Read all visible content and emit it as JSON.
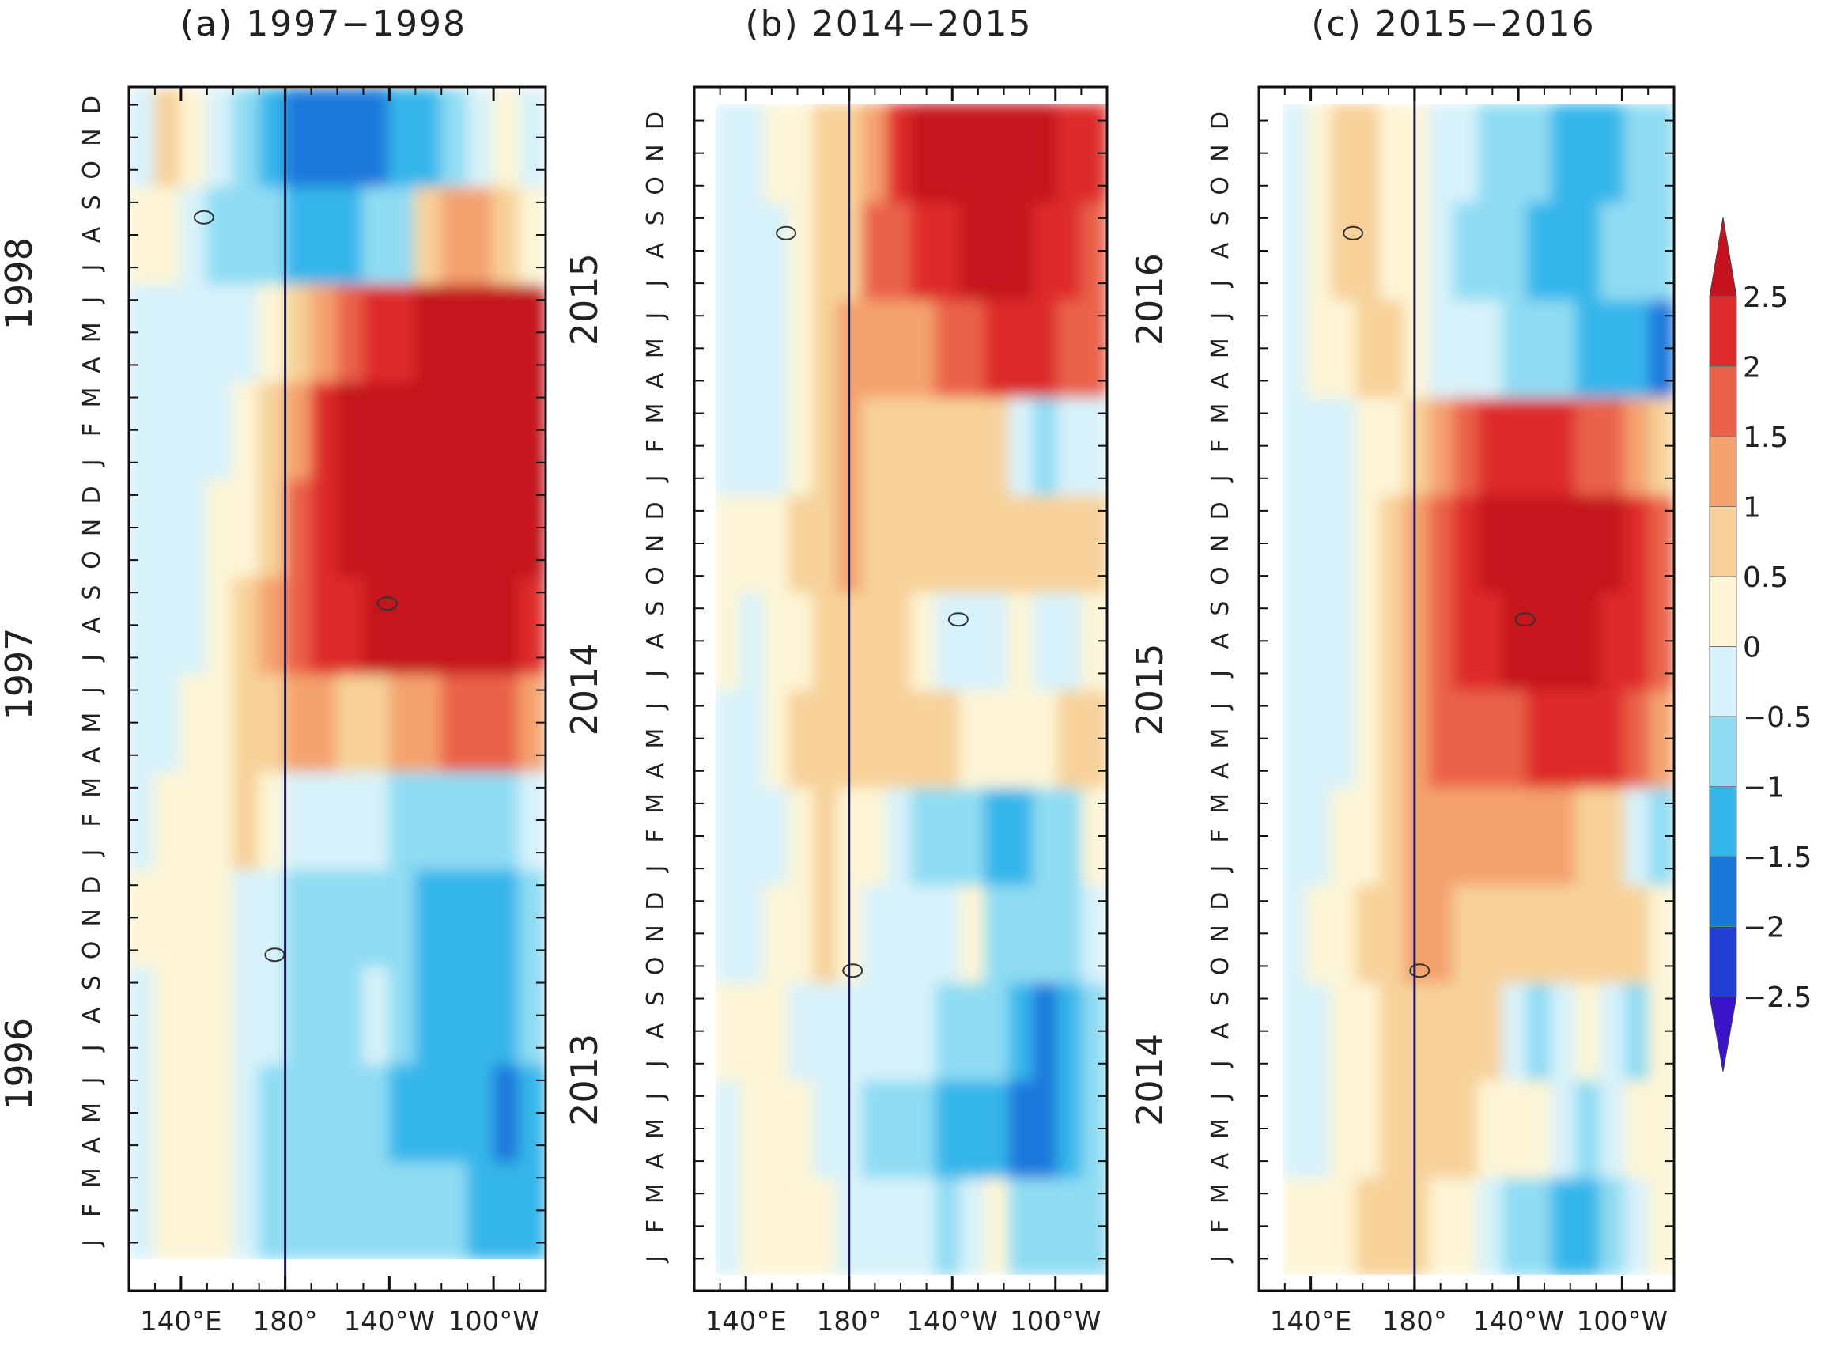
{
  "figure": {
    "colors": {
      "scale": [
        "#3a14c8",
        "#1f3fd6",
        "#1a78dc",
        "#35b6ea",
        "#8fdcf3",
        "#d7f2fa",
        "#fdf5d6",
        "#f7d199",
        "#f4a26e",
        "#ea6248",
        "#de2b2b",
        "#c4121f"
      ],
      "axis": "#111111",
      "dateline": "#1b1b4f",
      "contour": "#000000"
    },
    "colorbar": {
      "ticks": [
        "2.5",
        "2",
        "1.5",
        "1",
        "0.5",
        "0",
        "−0.5",
        "−1",
        "−1.5",
        "−2",
        "−2.5"
      ],
      "levels": [
        2.5,
        2,
        1.5,
        1,
        0.5,
        0,
        -0.5,
        -1,
        -1.5,
        -2,
        -2.5
      ]
    },
    "panels": [
      {
        "id": "a",
        "title": "(a) 1997−1998",
        "years": [
          "1996",
          "1997",
          "1998"
        ],
        "months": [
          "J",
          "F",
          "M",
          "A",
          "M",
          "J",
          "J",
          "A",
          "S",
          "O",
          "N",
          "D",
          "J",
          "F",
          "M",
          "A",
          "M",
          "J",
          "J",
          "A",
          "S",
          "O",
          "N",
          "D",
          "J",
          "F",
          "M",
          "A",
          "M",
          "J",
          "J",
          "A",
          "S",
          "O",
          "N",
          "D"
        ],
        "xticks": [
          "140°E",
          "180°",
          "140°W",
          "100°W"
        ],
        "zero_label": "0"
      },
      {
        "id": "b",
        "title": "(b) 2014−2015",
        "years": [
          "2013",
          "2014",
          "2015"
        ],
        "months": [
          "J",
          "F",
          "M",
          "A",
          "M",
          "J",
          "J",
          "A",
          "S",
          "O",
          "N",
          "D",
          "J",
          "F",
          "M",
          "A",
          "M",
          "J",
          "J",
          "A",
          "S",
          "O",
          "N",
          "D",
          "J",
          "F",
          "M",
          "A",
          "M",
          "J",
          "J",
          "A",
          "S",
          "O",
          "N",
          "D"
        ],
        "xticks": [
          "140°E",
          "180°",
          "140°W",
          "100°W"
        ],
        "zero_label": "0"
      },
      {
        "id": "c",
        "title": "(c) 2015−2016",
        "years": [
          "2014",
          "2015",
          "2016"
        ],
        "months": [
          "J",
          "F",
          "M",
          "A",
          "M",
          "J",
          "J",
          "A",
          "S",
          "O",
          "N",
          "D",
          "J",
          "F",
          "M",
          "A",
          "M",
          "J",
          "J",
          "A",
          "S",
          "O",
          "N",
          "D",
          "J",
          "F",
          "M",
          "A",
          "M",
          "J",
          "J",
          "A",
          "S",
          "O",
          "N",
          "D"
        ],
        "xticks": [
          "140°E",
          "180°",
          "140°W",
          "100°W"
        ],
        "zero_label": "0"
      }
    ]
  },
  "chart_data": [
    {
      "type": "heatmap",
      "title": "(a) 1997−1998",
      "x_ticks": [
        "140°E",
        "180°",
        "140°W",
        "100°W"
      ],
      "x_range": [
        120,
        280
      ],
      "x_values": [
        125,
        135,
        145,
        155,
        165,
        175,
        185,
        195,
        205,
        215,
        225,
        235,
        245,
        255,
        265,
        275
      ],
      "y_year_labels": [
        "1996",
        "1997",
        "1998"
      ],
      "y_range": [
        "1996-01",
        "1998-12"
      ],
      "y_months": [
        "1996-01",
        "1996-04",
        "1996-07",
        "1996-10",
        "1997-01",
        "1997-04",
        "1997-07",
        "1997-10",
        "1998-01",
        "1998-04",
        "1998-07",
        "1998-10"
      ],
      "z": [
        [
          -0.3,
          0.3,
          0.4,
          0.2,
          -0.2,
          -0.6,
          -1.0,
          -1.0,
          -0.9,
          -0.8,
          -1.0,
          -0.8,
          -0.9,
          -1.1,
          -1.4,
          -1.2
        ],
        [
          -0.3,
          0.2,
          0.3,
          0.1,
          -0.2,
          -0.6,
          -0.8,
          -0.9,
          -1.0,
          -0.9,
          -1.1,
          -1.3,
          -1.4,
          -1.5,
          -1.7,
          -1.2
        ],
        [
          -0.2,
          0.2,
          0.2,
          0.0,
          -0.3,
          -0.5,
          -0.6,
          -0.7,
          -0.6,
          -0.5,
          -0.9,
          -1.2,
          -1.5,
          -1.3,
          -1.2,
          -0.9
        ],
        [
          0.1,
          0.2,
          0.2,
          0.1,
          -0.2,
          -0.4,
          -0.6,
          -0.8,
          -0.8,
          -0.8,
          -1.0,
          -1.1,
          -1.3,
          -1.5,
          -1.2,
          -0.9
        ],
        [
          -0.2,
          0.1,
          0.3,
          0.4,
          0.5,
          0.3,
          -0.2,
          -0.4,
          -0.5,
          -0.5,
          -0.6,
          -0.8,
          -0.9,
          -1.0,
          -0.8,
          -0.4
        ],
        [
          -0.4,
          -0.1,
          0.1,
          0.4,
          0.6,
          0.9,
          1.1,
          1.0,
          0.9,
          0.9,
          1.0,
          1.3,
          1.6,
          1.9,
          1.6,
          1.2
        ],
        [
          -0.3,
          -0.2,
          -0.1,
          0.2,
          0.6,
          1.0,
          1.5,
          2.0,
          2.4,
          2.6,
          2.7,
          2.8,
          2.8,
          2.9,
          2.7,
          2.2
        ],
        [
          -0.4,
          -0.3,
          -0.2,
          0.0,
          0.3,
          0.9,
          1.6,
          2.2,
          2.6,
          2.8,
          2.9,
          3.0,
          3.0,
          3.0,
          2.9,
          2.8
        ],
        [
          -0.4,
          -0.3,
          -0.3,
          -0.1,
          0.2,
          0.6,
          1.4,
          2.0,
          2.6,
          2.9,
          3.0,
          3.0,
          3.0,
          3.0,
          3.0,
          2.9
        ],
        [
          -0.5,
          -0.4,
          -0.3,
          -0.2,
          -0.1,
          0.2,
          0.6,
          1.1,
          1.6,
          2.0,
          2.3,
          2.6,
          2.8,
          2.9,
          2.9,
          2.7
        ],
        [
          0.0,
          0.3,
          -0.2,
          -0.6,
          -0.9,
          -1.0,
          -1.2,
          -1.3,
          -1.2,
          -1.0,
          -0.6,
          0.6,
          1.4,
          1.2,
          0.8,
          0.1
        ],
        [
          -0.2,
          0.7,
          0.4,
          -0.3,
          -0.7,
          -1.1,
          -1.6,
          -1.9,
          -2.0,
          -1.9,
          -1.4,
          -1.1,
          -0.6,
          -0.1,
          0.2,
          -0.4
        ]
      ]
    },
    {
      "type": "heatmap",
      "title": "(b) 2014−2015",
      "x_ticks": [
        "140°E",
        "180°",
        "140°W",
        "100°W"
      ],
      "x_range": [
        120,
        280
      ],
      "x_values": [
        125,
        135,
        145,
        155,
        165,
        175,
        185,
        195,
        205,
        215,
        225,
        235,
        245,
        255,
        265,
        275
      ],
      "y_year_labels": [
        "2013",
        "2014",
        "2015"
      ],
      "y_range": [
        "2013-01",
        "2015-12"
      ],
      "y_months": [
        "2013-01",
        "2013-04",
        "2013-07",
        "2013-10",
        "2014-01",
        "2014-04",
        "2014-07",
        "2014-10",
        "2015-01",
        "2015-04",
        "2015-07",
        "2015-10"
      ],
      "z": [
        [
          -0.2,
          0.2,
          0.3,
          0.2,
          0.0,
          -0.2,
          -0.4,
          -0.5,
          -0.5,
          -0.6,
          -0.4,
          0.2,
          -0.6,
          -0.9,
          -0.9,
          -0.6
        ],
        [
          -0.2,
          0.1,
          0.2,
          0.1,
          -0.1,
          -0.3,
          -0.6,
          -0.8,
          -0.8,
          -1.1,
          -1.3,
          -1.4,
          -1.8,
          -2.0,
          -1.4,
          -0.8
        ],
        [
          0.2,
          0.2,
          0.0,
          -0.1,
          -0.2,
          -0.3,
          -0.4,
          -0.4,
          -0.5,
          -0.6,
          -0.7,
          -1.0,
          -1.4,
          -1.6,
          -1.2,
          -0.6
        ],
        [
          -0.3,
          -0.3,
          0.2,
          0.4,
          0.5,
          0.2,
          -0.2,
          -0.3,
          -0.5,
          -0.4,
          0.2,
          -0.6,
          -0.9,
          -1.0,
          -0.8,
          -0.4
        ],
        [
          -0.3,
          -0.3,
          -0.2,
          0.3,
          0.6,
          0.4,
          0.2,
          -0.4,
          -0.7,
          -0.9,
          -1.0,
          -1.2,
          -1.3,
          -1.0,
          -0.6,
          0.2
        ],
        [
          -0.4,
          -0.3,
          0.2,
          0.6,
          0.8,
          0.9,
          0.8,
          0.7,
          0.5,
          0.5,
          0.4,
          0.3,
          0.4,
          0.4,
          0.6,
          0.5
        ],
        [
          0.2,
          -0.1,
          0.2,
          0.3,
          0.6,
          0.8,
          0.9,
          0.6,
          0.3,
          -0.3,
          -0.5,
          -0.3,
          0.3,
          -0.4,
          -0.2,
          0.4
        ],
        [
          0.2,
          0.3,
          0.3,
          0.5,
          0.8,
          1.0,
          0.9,
          0.8,
          0.7,
          0.6,
          0.5,
          0.6,
          0.8,
          0.7,
          0.6,
          0.6
        ],
        [
          -0.3,
          -0.2,
          -0.1,
          0.4,
          0.9,
          1.0,
          0.9,
          0.8,
          0.6,
          0.8,
          0.7,
          0.6,
          -0.3,
          -0.6,
          -0.4,
          -0.3
        ],
        [
          -0.3,
          -0.5,
          -0.2,
          0.3,
          0.7,
          1.1,
          1.2,
          1.4,
          1.4,
          1.6,
          1.9,
          2.1,
          2.2,
          2.0,
          1.7,
          1.5
        ],
        [
          -0.3,
          -0.4,
          -0.2,
          0.2,
          0.5,
          0.9,
          1.5,
          1.9,
          2.2,
          2.4,
          2.6,
          2.7,
          2.6,
          2.4,
          2.1,
          1.8
        ],
        [
          -0.2,
          -0.1,
          0.1,
          0.3,
          0.5,
          0.8,
          1.3,
          2.0,
          2.5,
          2.8,
          2.9,
          3.0,
          3.0,
          2.8,
          2.4,
          2.0
        ]
      ]
    },
    {
      "type": "heatmap",
      "title": "(c) 2015−2016",
      "x_ticks": [
        "140°E",
        "180°",
        "140°W",
        "100°W"
      ],
      "x_range": [
        120,
        280
      ],
      "x_values": [
        125,
        135,
        145,
        155,
        165,
        175,
        185,
        195,
        205,
        215,
        225,
        235,
        245,
        255,
        265,
        275
      ],
      "y_year_labels": [
        "2014",
        "2015",
        "2016"
      ],
      "y_range": [
        "2014-01",
        "2016-12"
      ],
      "y_months": [
        "2014-01",
        "2014-04",
        "2014-07",
        "2014-10",
        "2015-01",
        "2015-04",
        "2015-07",
        "2015-10",
        "2016-01",
        "2016-04",
        "2016-07",
        "2016-10"
      ],
      "z": [
        [
          0.2,
          0.3,
          0.3,
          0.5,
          0.6,
          0.6,
          0.4,
          0.2,
          -0.3,
          -0.7,
          -1.0,
          -1.2,
          -1.1,
          -0.8,
          -0.2,
          0.3
        ],
        [
          -0.3,
          -0.3,
          0.2,
          0.4,
          0.6,
          0.7,
          0.8,
          0.6,
          0.4,
          0.3,
          0.2,
          -0.4,
          -0.6,
          -0.3,
          0.2,
          0.4
        ],
        [
          -0.2,
          -0.1,
          0.2,
          0.4,
          0.7,
          0.9,
          0.9,
          0.7,
          0.5,
          -0.4,
          -0.7,
          -0.5,
          0.3,
          -0.4,
          -0.6,
          0.2
        ],
        [
          -0.2,
          0.2,
          0.3,
          0.5,
          0.8,
          1.0,
          1.0,
          0.9,
          0.7,
          0.6,
          0.6,
          0.7,
          0.8,
          0.6,
          0.5,
          0.4
        ],
        [
          -0.3,
          -0.2,
          0.1,
          0.4,
          0.8,
          1.1,
          1.2,
          1.3,
          1.3,
          1.3,
          1.2,
          1.1,
          0.9,
          0.5,
          -0.3,
          -0.6
        ],
        [
          -0.3,
          -0.4,
          -0.1,
          0.3,
          0.7,
          1.2,
          1.5,
          1.7,
          1.8,
          1.9,
          2.0,
          2.2,
          2.2,
          2.1,
          1.8,
          1.2
        ],
        [
          -0.4,
          -0.5,
          -0.2,
          0.2,
          0.6,
          1.3,
          1.8,
          2.2,
          2.4,
          2.6,
          2.7,
          2.6,
          2.5,
          2.3,
          2.0,
          1.5
        ],
        [
          -0.3,
          -0.5,
          -0.2,
          0.2,
          0.6,
          1.2,
          1.8,
          2.4,
          2.8,
          2.9,
          3.0,
          3.0,
          2.9,
          2.6,
          2.2,
          1.6
        ],
        [
          -0.2,
          -0.2,
          -0.1,
          0.2,
          0.4,
          0.9,
          1.3,
          1.8,
          2.1,
          2.3,
          2.3,
          2.1,
          1.9,
          1.6,
          1.2,
          0.7
        ],
        [
          -0.3,
          0.2,
          0.4,
          0.5,
          0.5,
          0.3,
          -0.2,
          -0.4,
          -0.5,
          -0.6,
          -0.8,
          -1.0,
          -1.1,
          -1.2,
          -1.4,
          -1.6
        ],
        [
          -0.2,
          0.3,
          0.5,
          0.5,
          0.3,
          0.1,
          -0.4,
          -0.6,
          -0.8,
          -0.9,
          -1.1,
          -1.4,
          -1.2,
          -1.0,
          -0.8,
          -0.6
        ],
        [
          -0.1,
          0.3,
          0.5,
          0.5,
          0.3,
          0.0,
          -0.3,
          -0.5,
          -0.7,
          -0.9,
          -1.0,
          -1.2,
          -1.3,
          -1.1,
          -0.9,
          -0.8
        ]
      ]
    }
  ]
}
